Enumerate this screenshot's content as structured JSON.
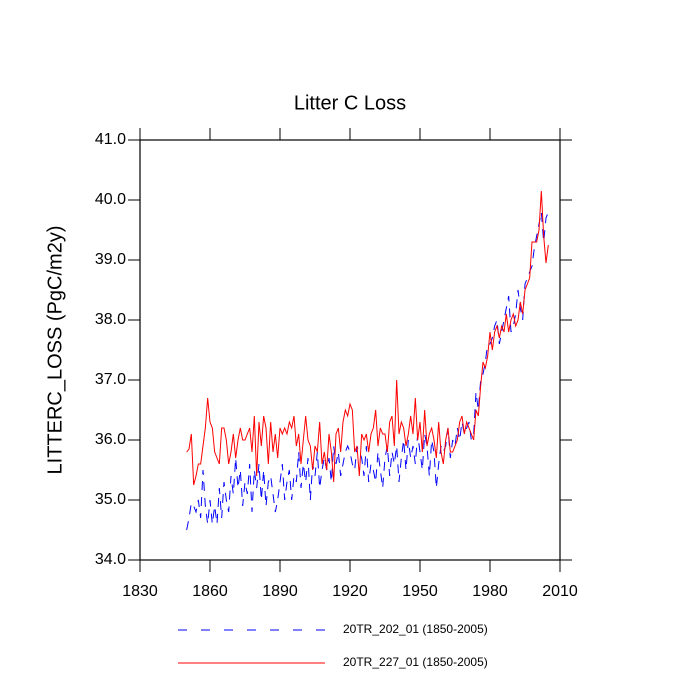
{
  "chart_data": {
    "type": "line",
    "title": "Litter C Loss",
    "y_label": "LITTERC_LOSS  (PgC/m2y)",
    "x": [
      1850,
      1851,
      1852,
      1853,
      1854,
      1855,
      1856,
      1857,
      1858,
      1859,
      1860,
      1861,
      1862,
      1863,
      1864,
      1865,
      1866,
      1867,
      1868,
      1869,
      1870,
      1871,
      1872,
      1873,
      1874,
      1875,
      1876,
      1877,
      1878,
      1879,
      1880,
      1881,
      1882,
      1883,
      1884,
      1885,
      1886,
      1887,
      1888,
      1889,
      1890,
      1891,
      1892,
      1893,
      1894,
      1895,
      1896,
      1897,
      1898,
      1899,
      1900,
      1901,
      1902,
      1903,
      1904,
      1905,
      1906,
      1907,
      1908,
      1909,
      1910,
      1911,
      1912,
      1913,
      1914,
      1915,
      1916,
      1917,
      1918,
      1919,
      1920,
      1921,
      1922,
      1923,
      1924,
      1925,
      1926,
      1927,
      1928,
      1929,
      1930,
      1931,
      1932,
      1933,
      1934,
      1935,
      1936,
      1937,
      1938,
      1939,
      1940,
      1941,
      1942,
      1943,
      1944,
      1945,
      1946,
      1947,
      1948,
      1949,
      1950,
      1951,
      1952,
      1953,
      1954,
      1955,
      1956,
      1957,
      1958,
      1959,
      1960,
      1961,
      1962,
      1963,
      1964,
      1965,
      1966,
      1967,
      1968,
      1969,
      1970,
      1971,
      1972,
      1973,
      1974,
      1975,
      1976,
      1977,
      1978,
      1979,
      1980,
      1981,
      1982,
      1983,
      1984,
      1985,
      1986,
      1987,
      1988,
      1989,
      1990,
      1991,
      1992,
      1993,
      1994,
      1995,
      1996,
      1997,
      1998,
      1999,
      2000,
      2001,
      2002,
      2003,
      2004,
      2005
    ],
    "series": [
      {
        "name": "20TR_202_01 (1850-2005)",
        "color": "#0000ff",
        "dash": true,
        "values": [
          34.5,
          34.7,
          34.95,
          34.9,
          34.8,
          35.0,
          34.7,
          35.5,
          34.9,
          34.6,
          35.0,
          34.6,
          34.9,
          34.6,
          35.2,
          34.7,
          35.3,
          35.0,
          34.8,
          35.4,
          35.1,
          35.7,
          35.2,
          35.5,
          34.9,
          35.3,
          35.1,
          35.6,
          34.8,
          35.5,
          35.2,
          35.6,
          35.0,
          35.5,
          34.9,
          35.3,
          35.4,
          35.1,
          34.8,
          35.0,
          35.3,
          35.6,
          35.0,
          35.3,
          35.5,
          35.0,
          35.4,
          35.3,
          35.8,
          35.2,
          35.6,
          35.3,
          35.7,
          35.0,
          35.6,
          35.4,
          35.8,
          35.2,
          35.5,
          35.7,
          35.5,
          35.7,
          35.3,
          35.9,
          35.6,
          35.8,
          35.4,
          35.6,
          35.8,
          35.9,
          35.8,
          35.6,
          35.5,
          35.9,
          35.8,
          35.7,
          35.4,
          35.9,
          35.3,
          35.6,
          35.5,
          35.3,
          35.8,
          35.5,
          35.2,
          35.7,
          35.9,
          35.4,
          35.8,
          35.6,
          35.9,
          35.3,
          35.7,
          36.0,
          35.5,
          36.0,
          35.7,
          35.9,
          35.6,
          36.1,
          35.8,
          35.5,
          36.1,
          35.9,
          35.4,
          36.0,
          35.8,
          35.2,
          35.6,
          35.9,
          35.8,
          35.9,
          36.2,
          35.7,
          36.0,
          35.9,
          36.2,
          36.0,
          36.3,
          36.1,
          36.2,
          36.3,
          36.0,
          36.1,
          36.8,
          36.5,
          37.0,
          37.1,
          37.3,
          37.6,
          37.6,
          37.7,
          37.9,
          38.0,
          37.6,
          37.8,
          38.0,
          38.2,
          38.4,
          37.8,
          37.9,
          38.1,
          38.5,
          38.2,
          38.0,
          38.6,
          38.7,
          38.8,
          38.9,
          39.2,
          39.4,
          39.6,
          39.8,
          39.3,
          39.7,
          39.8
        ]
      },
      {
        "name": "20TR_227_01 (1850-2005)",
        "color": "#ff0000",
        "dash": false,
        "values": [
          35.8,
          35.85,
          36.1,
          35.25,
          35.4,
          35.6,
          35.6,
          35.9,
          36.2,
          36.7,
          36.3,
          36.2,
          35.8,
          35.7,
          35.6,
          36.2,
          36.2,
          36.0,
          35.6,
          35.8,
          36.1,
          35.7,
          36.0,
          36.2,
          36.0,
          36.0,
          36.1,
          36.2,
          35.8,
          36.4,
          35.4,
          36.3,
          35.9,
          36.4,
          36.2,
          35.6,
          36.3,
          35.8,
          36.1,
          35.7,
          36.2,
          36.1,
          36.2,
          36.1,
          36.3,
          36.2,
          36.4,
          35.9,
          36.1,
          35.6,
          36.0,
          36.4,
          36.0,
          35.9,
          35.5,
          35.9,
          35.8,
          36.3,
          35.6,
          35.8,
          35.5,
          36.1,
          35.8,
          35.3,
          36.1,
          36.2,
          35.8,
          36.3,
          36.5,
          36.4,
          36.6,
          36.5,
          35.8,
          35.9,
          35.4,
          36.1,
          36.0,
          36.1,
          35.8,
          36.1,
          36.2,
          36.5,
          35.9,
          36.2,
          36.1,
          36.1,
          35.8,
          36.3,
          36.4,
          35.9,
          37.0,
          36.1,
          36.3,
          36.2,
          35.9,
          36.1,
          36.4,
          36.1,
          36.7,
          36.0,
          36.3,
          35.8,
          36.5,
          35.9,
          36.1,
          36.2,
          36.0,
          35.7,
          36.3,
          35.8,
          35.6,
          36.0,
          36.2,
          35.8,
          35.8,
          35.9,
          36.0,
          36.3,
          36.4,
          36.1,
          36.3,
          36.2,
          36.1,
          36.0,
          36.5,
          36.4,
          36.9,
          37.3,
          37.2,
          37.4,
          37.8,
          37.5,
          37.8,
          37.9,
          37.7,
          37.9,
          37.8,
          38.1,
          37.8,
          38.0,
          38.1,
          37.9,
          38.0,
          38.3,
          38.1,
          38.5,
          38.6,
          38.7,
          39.3,
          39.3,
          39.3,
          39.5,
          40.15,
          39.4,
          38.95,
          39.25
        ]
      }
    ],
    "xlim": [
      1830,
      2010
    ],
    "xticks": [
      1830,
      1860,
      1890,
      1920,
      1950,
      1980,
      2010
    ],
    "ylim": [
      34,
      41
    ],
    "yticks": [
      {
        "value": 34,
        "label": "34.0"
      },
      {
        "value": 35,
        "label": "35.0"
      },
      {
        "value": 36,
        "label": "36.0"
      },
      {
        "value": 37,
        "label": "37.0"
      },
      {
        "value": 38,
        "label": "38.0"
      },
      {
        "value": 39,
        "label": "39.0"
      },
      {
        "value": 40,
        "label": "40.0"
      },
      {
        "value": 41,
        "label": "41.0"
      }
    ],
    "legend": "bottom"
  }
}
